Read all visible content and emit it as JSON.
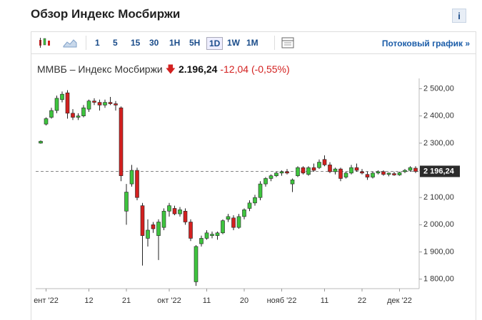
{
  "header": {
    "title": "Обзор Индекс Мосбиржи",
    "info": "i"
  },
  "toolbar": {
    "intervals": [
      "1",
      "5",
      "15",
      "30",
      "1H",
      "5H",
      "1D",
      "1W",
      "1M"
    ],
    "selected": "1D",
    "link": "Потоковый график »"
  },
  "quote": {
    "name": "ММВБ – Индекс Мосбиржи",
    "price": "2.196,24",
    "change": "-12,04",
    "change_percent": "(-0,55%)"
  },
  "chart_data": {
    "type": "candlestick",
    "categories": [
      null,
      "ент '22",
      null,
      null,
      null,
      null,
      null,
      null,
      null,
      "12",
      null,
      null,
      null,
      null,
      null,
      null,
      "21",
      null,
      null,
      null,
      null,
      null,
      null,
      null,
      "окт '22",
      null,
      null,
      null,
      null,
      null,
      null,
      "11",
      null,
      null,
      null,
      null,
      null,
      null,
      "20",
      null,
      null,
      null,
      null,
      null,
      null,
      "нояб '22",
      null,
      null,
      null,
      null,
      null,
      null,
      null,
      "11",
      null,
      null,
      null,
      null,
      null,
      null,
      "22",
      null,
      null,
      null,
      null,
      null,
      null,
      "дек '22",
      null,
      null,
      null
    ],
    "open": [
      2300,
      2370,
      2395,
      2420,
      2460,
      2485,
      2410,
      2395,
      2400,
      2425,
      2455,
      2450,
      2440,
      2450,
      2445,
      2430,
      2050,
      2150,
      2200,
      2070,
      1950,
      2000,
      1960,
      1990,
      2050,
      2060,
      2040,
      2050,
      2010,
      1790,
      1930,
      1950,
      1960,
      1960,
      1970,
      2020,
      2025,
      1990,
      2030,
      2060,
      2080,
      2100,
      2150,
      2170,
      2180,
      2190,
      2195,
      2150,
      2180,
      2210,
      2185,
      2210,
      2210,
      2240,
      2220,
      2195,
      2205,
      2175,
      2190,
      2210,
      2195,
      2185,
      2175,
      2190,
      2195,
      2185,
      2188,
      2183,
      2195,
      2200,
      2208
    ],
    "high": [
      2310,
      2395,
      2430,
      2475,
      2490,
      2495,
      2425,
      2410,
      2440,
      2460,
      2465,
      2460,
      2460,
      2470,
      2455,
      2435,
      2150,
      2220,
      2210,
      2080,
      2020,
      2010,
      2020,
      2060,
      2080,
      2070,
      2065,
      2060,
      2020,
      1925,
      1960,
      1980,
      1975,
      1975,
      2020,
      2040,
      2035,
      2040,
      2060,
      2090,
      2110,
      2160,
      2175,
      2185,
      2195,
      2200,
      2205,
      2170,
      2215,
      2215,
      2215,
      2225,
      2240,
      2255,
      2230,
      2210,
      2210,
      2195,
      2220,
      2225,
      2205,
      2195,
      2195,
      2200,
      2200,
      2192,
      2195,
      2195,
      2205,
      2215,
      2215
    ],
    "low": [
      2298,
      2365,
      2390,
      2410,
      2450,
      2390,
      2385,
      2385,
      2395,
      2415,
      2440,
      2420,
      2430,
      2440,
      2420,
      2160,
      2000,
      2140,
      2090,
      1850,
      1920,
      1970,
      1870,
      1980,
      2030,
      2035,
      2030,
      2000,
      1940,
      1775,
      1920,
      1945,
      1950,
      1945,
      1965,
      2010,
      1980,
      1985,
      2020,
      2050,
      2070,
      2090,
      2140,
      2160,
      2175,
      2180,
      2185,
      2120,
      2175,
      2185,
      2180,
      2195,
      2205,
      2215,
      2190,
      2185,
      2160,
      2170,
      2185,
      2195,
      2185,
      2165,
      2170,
      2185,
      2180,
      2178,
      2180,
      2180,
      2190,
      2195,
      2190
    ],
    "close": [
      2307,
      2390,
      2420,
      2465,
      2480,
      2410,
      2395,
      2400,
      2430,
      2455,
      2450,
      2440,
      2450,
      2445,
      2440,
      2180,
      2120,
      2200,
      2100,
      1960,
      1980,
      1985,
      2010,
      2050,
      2070,
      2040,
      2055,
      2010,
      1950,
      1920,
      1950,
      1970,
      1965,
      1970,
      2015,
      2030,
      1990,
      2030,
      2055,
      2080,
      2100,
      2150,
      2170,
      2180,
      2190,
      2195,
      2190,
      2165,
      2210,
      2190,
      2210,
      2200,
      2230,
      2220,
      2195,
      2205,
      2170,
      2190,
      2210,
      2200,
      2190,
      2175,
      2190,
      2195,
      2185,
      2190,
      2183,
      2192,
      2200,
      2210,
      2196
    ],
    "up_color": "#3ec43e",
    "down_color": "#d3201f",
    "ylim": [
      1765,
      2525
    ],
    "yticks": [
      {
        "value": 1800,
        "label": "1 800,00"
      },
      {
        "value": 1900,
        "label": "1 900,00"
      },
      {
        "value": 2000,
        "label": "2 000,00"
      },
      {
        "value": 2100,
        "label": "2 100,00"
      },
      {
        "value": 2200,
        "label": "2 200,00"
      },
      {
        "value": 2300,
        "label": "2 300,00"
      },
      {
        "value": 2400,
        "label": "2 400,00"
      },
      {
        "value": 2500,
        "label": "2 500,00"
      }
    ],
    "last_price": {
      "value": 2196.24,
      "label": "2 196,24"
    }
  }
}
